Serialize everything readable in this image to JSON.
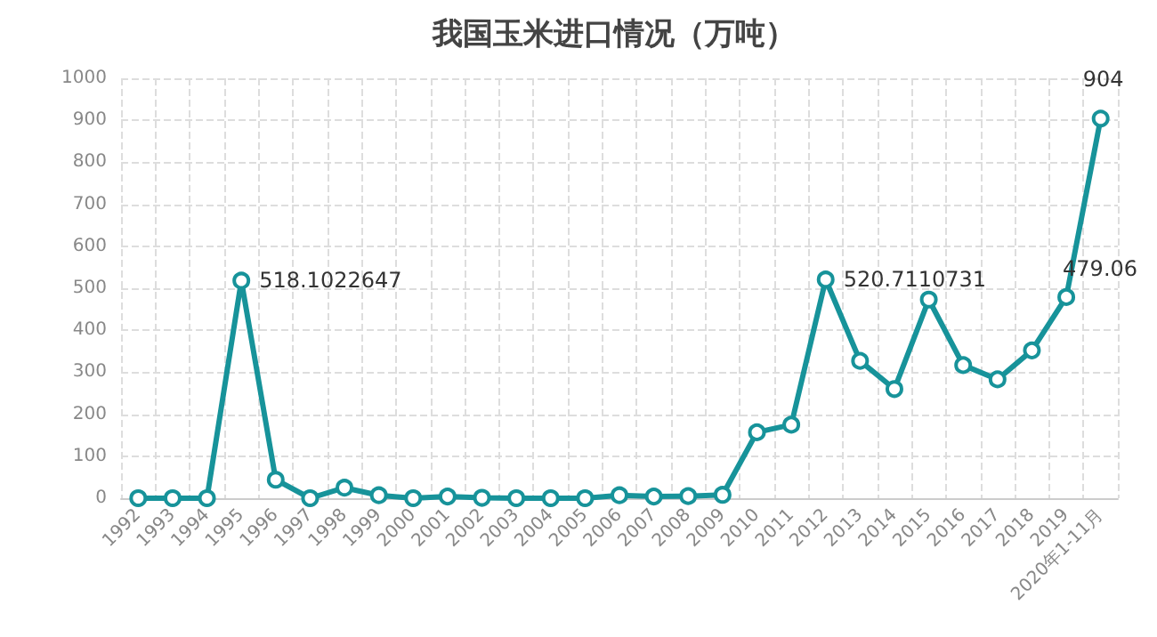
{
  "chart_data": {
    "type": "line",
    "title": "我国玉米进口情况（万吨）",
    "categories": [
      "1992",
      "1993",
      "1994",
      "1995",
      "1996",
      "1997",
      "1998",
      "1999",
      "2000",
      "2001",
      "2002",
      "2003",
      "2004",
      "2005",
      "2006",
      "2007",
      "2008",
      "2009",
      "2010",
      "2011",
      "2012",
      "2013",
      "2014",
      "2015",
      "2016",
      "2017",
      "2018",
      "2019",
      "2020年1-11月"
    ],
    "values": [
      0,
      0,
      0,
      518.1022647,
      44,
      0,
      25,
      7,
      0,
      4,
      1,
      0,
      0,
      0,
      7,
      4,
      5,
      8,
      157,
      175,
      520.7110731,
      327,
      260,
      473,
      317,
      283,
      352,
      479.06,
      904
    ],
    "value_labels": [
      null,
      null,
      null,
      "518.1022647",
      null,
      null,
      null,
      null,
      null,
      null,
      null,
      null,
      null,
      null,
      null,
      null,
      null,
      null,
      null,
      null,
      "520.7110731",
      null,
      null,
      null,
      null,
      null,
      null,
      "479.06",
      "904"
    ],
    "color": "#17939a",
    "ylim": [
      0,
      1000
    ],
    "yticks": [
      0,
      100,
      200,
      300,
      400,
      500,
      600,
      700,
      800,
      900,
      1000
    ],
    "grid": true,
    "marker": "circle",
    "line_style": "solid"
  }
}
